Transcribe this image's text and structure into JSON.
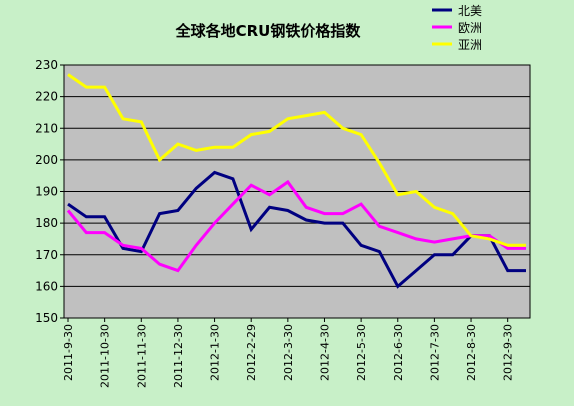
{
  "chart_data": {
    "type": "line",
    "title": "全球各地CRU钢铁价格指数",
    "xlabel": "",
    "ylabel": "",
    "ylim": [
      150,
      230
    ],
    "yticks": [
      150,
      160,
      170,
      180,
      190,
      200,
      210,
      220,
      230
    ],
    "grid": true,
    "legend_position": "top-right",
    "plot_background": "#c0c0c0",
    "page_background": "#c8f0c8",
    "x": [
      "2011-9-30",
      "2011-10-15",
      "2011-10-30",
      "2011-11-15",
      "2011-11-30",
      "2011-12-15",
      "2011-12-30",
      "2012-1-15",
      "2012-1-30",
      "2012-2-15",
      "2012-2-29",
      "2012-3-15",
      "2012-3-30",
      "2012-4-15",
      "2012-4-30",
      "2012-5-15",
      "2012-5-30",
      "2012-6-15",
      "2012-6-30",
      "2012-7-15",
      "2012-7-30",
      "2012-8-15",
      "2012-8-30",
      "2012-9-15",
      "2012-9-30",
      "2012-10-15"
    ],
    "xticks": [
      "2011-9-30",
      "2011-10-30",
      "2011-11-30",
      "2011-12-30",
      "2012-1-30",
      "2012-2-29",
      "2012-3-30",
      "2012-4-30",
      "2012-5-30",
      "2012-6-30",
      "2012-7-30",
      "2012-8-30",
      "2012-9-30"
    ],
    "series": [
      {
        "name": "北美",
        "color": "#000080",
        "values": [
          186,
          182,
          182,
          172,
          171,
          183,
          184,
          191,
          196,
          194,
          178,
          185,
          184,
          181,
          180,
          180,
          173,
          171,
          160,
          165,
          170,
          170,
          176,
          176,
          165,
          165
        ]
      },
      {
        "name": "欧洲",
        "color": "#ff00ff",
        "values": [
          184,
          177,
          177,
          173,
          172,
          167,
          165,
          173,
          180,
          186,
          192,
          189,
          193,
          185,
          183,
          183,
          186,
          179,
          177,
          175,
          174,
          175,
          176,
          176,
          172,
          172
        ]
      },
      {
        "name": "亚洲",
        "color": "#ffff00",
        "values": [
          227,
          223,
          223,
          213,
          212,
          200,
          205,
          203,
          204,
          204,
          208,
          209,
          213,
          214,
          215,
          210,
          208,
          199,
          189,
          190,
          185,
          183,
          176,
          175,
          173,
          173
        ]
      }
    ]
  }
}
